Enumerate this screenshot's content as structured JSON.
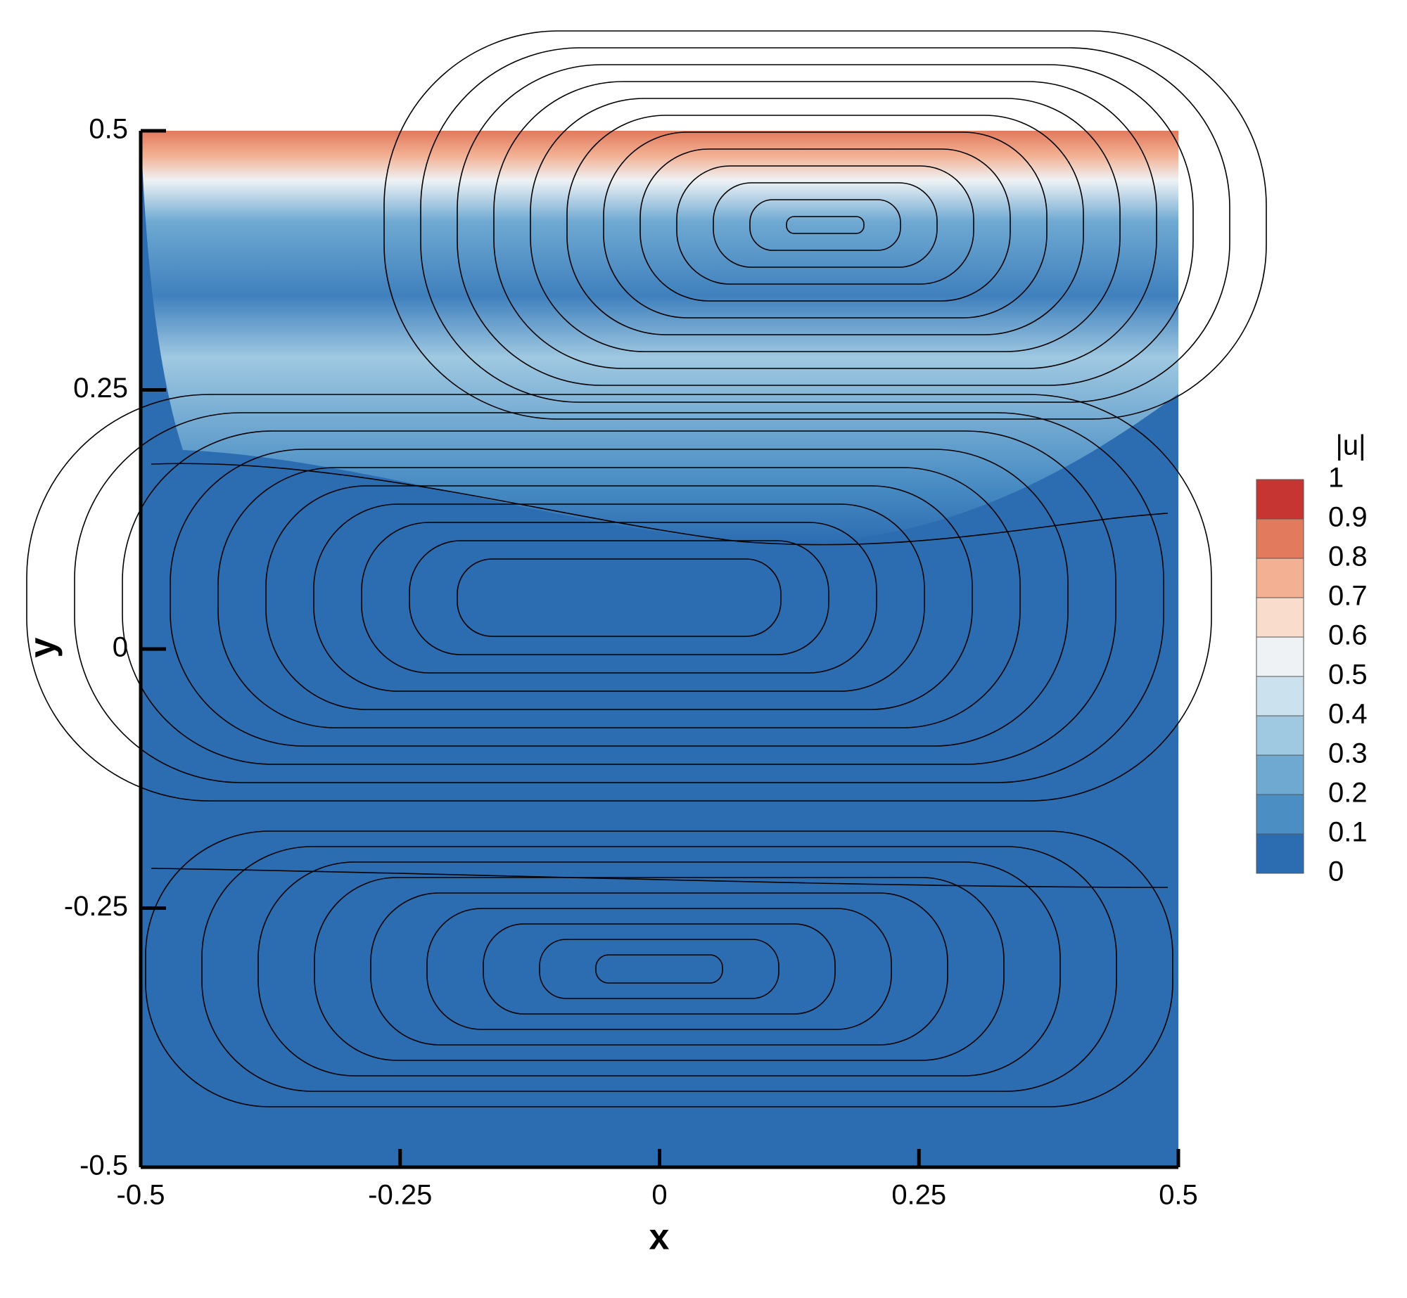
{
  "chart_data": {
    "type": "contour",
    "xlabel": "x",
    "ylabel": "y",
    "xlim": [
      -0.5,
      0.5
    ],
    "xticks": [
      -0.5,
      -0.25,
      0,
      0.25,
      0.5
    ],
    "ylim": [
      -0.5,
      0.5
    ],
    "yticks": [
      -0.5,
      -0.25,
      0,
      0.25,
      0.5
    ],
    "colorbar": {
      "label": "|u|",
      "lim": [
        0,
        1
      ],
      "ticks": [
        0,
        0.1,
        0.2,
        0.3,
        0.4,
        0.5,
        0.6,
        0.7,
        0.8,
        0.9,
        1
      ],
      "colors": [
        "#2c6db2",
        "#4a8ec4",
        "#6fa9d2",
        "#9fc8e1",
        "#cbe1ee",
        "#eef2f5",
        "#f9dccb",
        "#f3b093",
        "#e27a5d",
        "#c73532"
      ]
    }
  }
}
